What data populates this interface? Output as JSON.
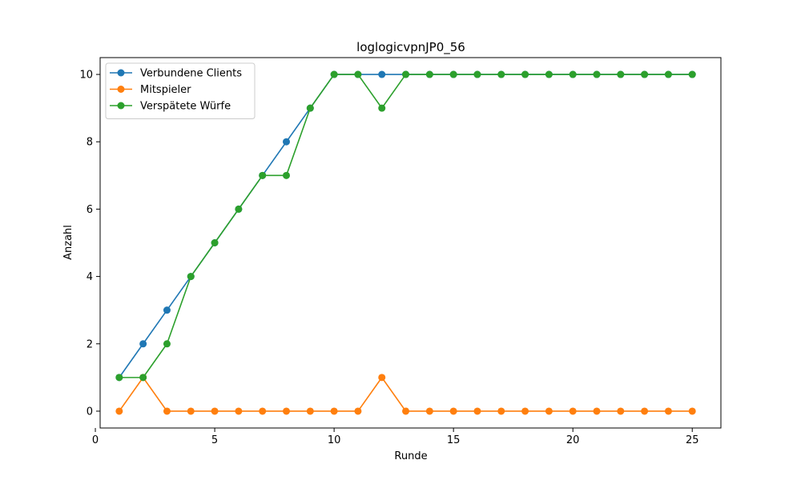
{
  "chart_data": {
    "type": "line",
    "title": "loglogicvpnJP0_56",
    "xlabel": "Runde",
    "ylabel": "Anzahl",
    "x": [
      1,
      2,
      3,
      4,
      5,
      6,
      7,
      8,
      9,
      10,
      11,
      12,
      13,
      14,
      15,
      16,
      17,
      18,
      19,
      20,
      21,
      22,
      23,
      24,
      25
    ],
    "xlim": [
      0.2,
      26.2
    ],
    "ylim": [
      -0.5,
      10.5
    ],
    "xticks": [
      0,
      5,
      10,
      15,
      20,
      25
    ],
    "yticks": [
      0,
      2,
      4,
      6,
      8,
      10
    ],
    "grid": false,
    "legend_position": "top-left",
    "series": [
      {
        "name": "Verbundene Clients",
        "color": "#1f77b4",
        "values": [
          1,
          2,
          3,
          4,
          5,
          6,
          7,
          8,
          9,
          10,
          10,
          10,
          10,
          10,
          10,
          10,
          10,
          10,
          10,
          10,
          10,
          10,
          10,
          10,
          10
        ]
      },
      {
        "name": "Mitspieler",
        "color": "#ff7f0e",
        "values": [
          0,
          1,
          0,
          0,
          0,
          0,
          0,
          0,
          0,
          0,
          0,
          1,
          0,
          0,
          0,
          0,
          0,
          0,
          0,
          0,
          0,
          0,
          0,
          0,
          0
        ]
      },
      {
        "name": "Verspätete Würfe",
        "color": "#2ca02c",
        "values": [
          1,
          1,
          2,
          4,
          5,
          6,
          7,
          7,
          9,
          10,
          10,
          9,
          10,
          10,
          10,
          10,
          10,
          10,
          10,
          10,
          10,
          10,
          10,
          10,
          10
        ]
      }
    ]
  }
}
